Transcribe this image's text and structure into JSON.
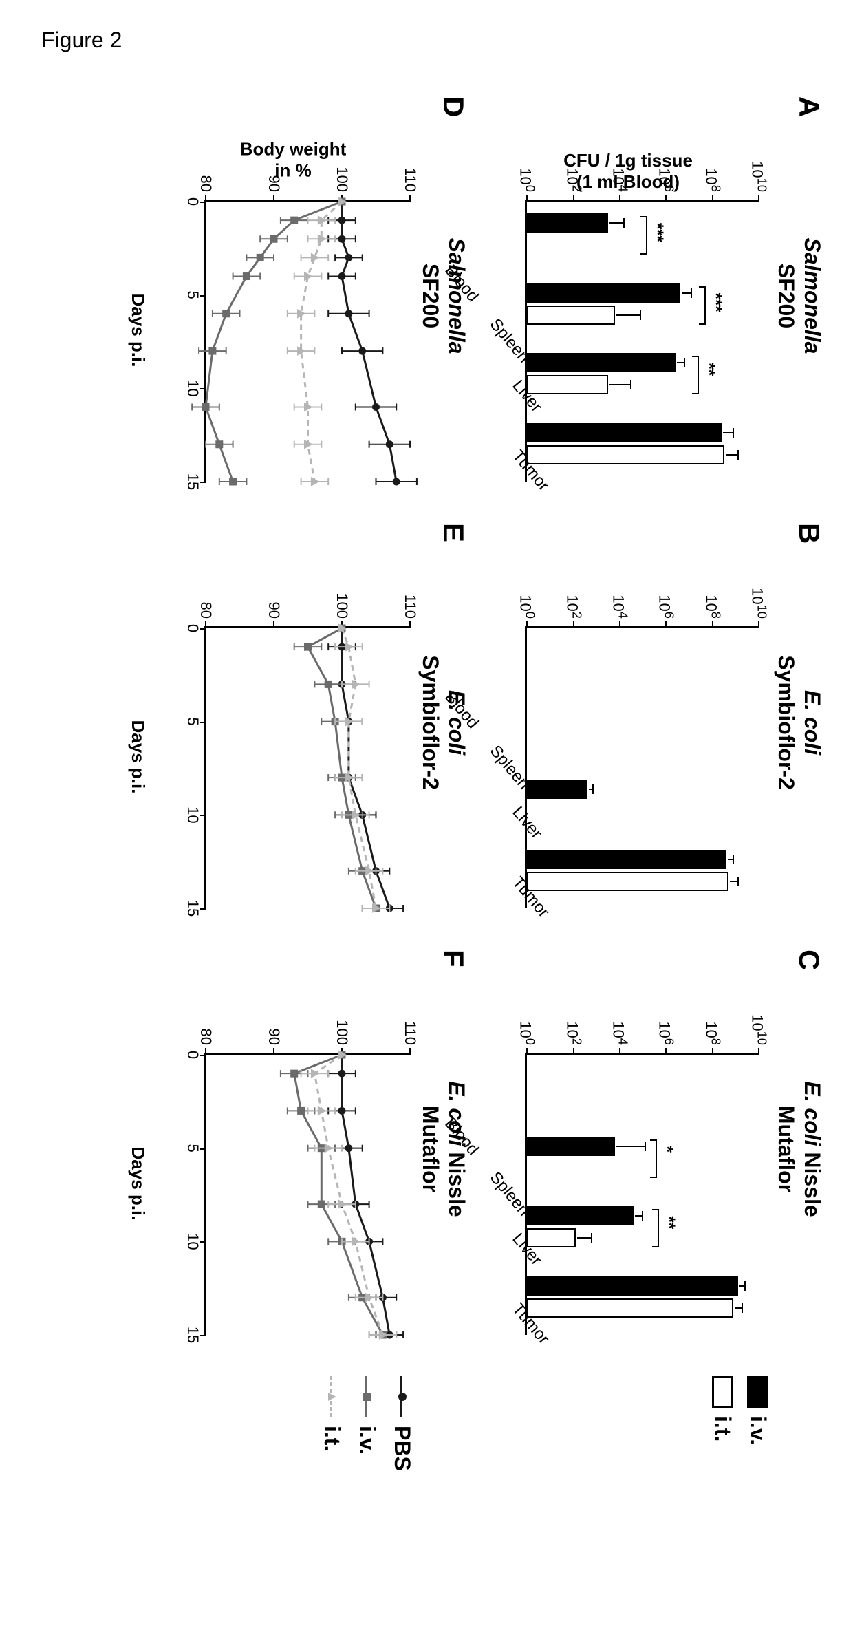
{
  "figure_caption": "Figure 2",
  "panels": {
    "A": {
      "letter": "A",
      "title_italic": "Salmonella",
      "title_plain": "SF200"
    },
    "B": {
      "letter": "B",
      "title_italic": "E. coli",
      "title_plain": "Symbioflor-2"
    },
    "C": {
      "letter": "C",
      "title_italic": "E. coli",
      "title_plain_pre": " Nissle",
      "title_plain": "Mutaflor"
    },
    "D": {
      "letter": "D",
      "title_italic": "Salmonella",
      "title_plain": "SF200"
    },
    "E": {
      "letter": "E",
      "title_italic": "E. coli",
      "title_plain": "Symbioflor-2"
    },
    "F": {
      "letter": "F",
      "title_italic": "E. coli",
      "title_plain_pre": " Nissle",
      "title_plain": "Mutaflor"
    }
  },
  "bar_yaxis": {
    "label": "CFU / 1g tissue\n(1 ml Blood)",
    "ticks": [
      "10^0",
      "10^2",
      "10^4",
      "10^6",
      "10^8",
      "10^10"
    ],
    "min_exp": 0,
    "max_exp": 10
  },
  "bar_categories": [
    "Blood",
    "Spleen",
    "Liver",
    "Tumor"
  ],
  "bar_legend": {
    "iv": "i.v.",
    "it": "i.t."
  },
  "bar_data": {
    "A": {
      "Blood": {
        "iv": {
          "val": 3.5,
          "err": 0.6
        },
        "it": null
      },
      "Spleen": {
        "iv": {
          "val": 6.6,
          "err": 0.4
        },
        "it": {
          "val": 3.8,
          "err": 1.0
        }
      },
      "Liver": {
        "iv": {
          "val": 6.4,
          "err": 0.3
        },
        "it": {
          "val": 3.5,
          "err": 0.9
        }
      },
      "Tumor": {
        "iv": {
          "val": 8.4,
          "err": 0.4
        },
        "it": {
          "val": 8.5,
          "err": 0.5
        }
      }
    },
    "B": {
      "Blood": {
        "iv": null,
        "it": null
      },
      "Spleen": {
        "iv": null,
        "it": null
      },
      "Liver": {
        "iv": {
          "val": 2.6,
          "err": 0.15
        },
        "it": null
      },
      "Tumor": {
        "iv": {
          "val": 8.6,
          "err": 0.2
        },
        "it": {
          "val": 8.7,
          "err": 0.3
        }
      }
    },
    "C": {
      "Blood": {
        "iv": null,
        "it": null
      },
      "Spleen": {
        "iv": {
          "val": 3.8,
          "err": 1.2
        },
        "it": null
      },
      "Liver": {
        "iv": {
          "val": 4.6,
          "err": 0.3
        },
        "it": {
          "val": 2.1,
          "err": 0.6
        }
      },
      "Tumor": {
        "iv": {
          "val": 9.1,
          "err": 0.2
        },
        "it": {
          "val": 8.9,
          "err": 0.3
        }
      }
    }
  },
  "bar_sig": {
    "A": [
      {
        "over": "Blood",
        "between": [
          "iv",
          "it"
        ],
        "label": "***",
        "y": 5.2
      },
      {
        "over": "Spleen",
        "between": [
          "iv",
          "it"
        ],
        "label": "***",
        "y": 7.7
      },
      {
        "over": "Liver",
        "between": [
          "iv",
          "it"
        ],
        "label": "**",
        "y": 7.4
      }
    ],
    "B": [],
    "C": [
      {
        "over": "Spleen",
        "between": [
          "iv",
          "it"
        ],
        "label": "*",
        "y": 5.6
      },
      {
        "over": "Liver",
        "between": [
          "iv",
          "it"
        ],
        "label": "**",
        "y": 5.7
      }
    ]
  },
  "line_yaxis": {
    "label": "Body weight\nin %",
    "min": 80,
    "max": 110,
    "step": 10
  },
  "line_xaxis": {
    "label": "Days p.i.",
    "min": 0,
    "max": 15,
    "step": 5
  },
  "line_legend": {
    "PBS": "PBS",
    "iv": "i.v.",
    "it": "i.t."
  },
  "line_colors": {
    "PBS": "#1a1a1a",
    "iv": "#6b6b6b",
    "it": "#b5b5b5"
  },
  "line_styles": {
    "PBS": "solid",
    "iv": "solid",
    "it": "dash"
  },
  "line_markers": {
    "PBS": "circle",
    "iv": "square",
    "it": "triangle"
  },
  "line_data": {
    "D": {
      "x": [
        0,
        1,
        2,
        3,
        4,
        6,
        8,
        11,
        13,
        15
      ],
      "PBS": {
        "y": [
          100,
          100,
          100,
          101,
          100,
          101,
          103,
          105,
          107,
          108
        ],
        "err": [
          0,
          2,
          2,
          2,
          2,
          3,
          3,
          3,
          3,
          3
        ]
      },
      "iv": {
        "y": [
          100,
          93,
          90,
          88,
          86,
          83,
          81,
          80,
          82,
          84
        ],
        "err": [
          0,
          2,
          2,
          2,
          2,
          2,
          2,
          2,
          2,
          2
        ]
      },
      "it": {
        "y": [
          100,
          97,
          97,
          96,
          95,
          94,
          94,
          95,
          95,
          96
        ],
        "err": [
          0,
          2,
          2,
          2,
          2,
          2,
          2,
          2,
          2,
          2
        ]
      }
    },
    "E": {
      "x": [
        0,
        1,
        3,
        5,
        8,
        10,
        13,
        15
      ],
      "PBS": {
        "y": [
          100,
          100,
          100,
          101,
          101,
          103,
          105,
          107
        ],
        "err": [
          0,
          2,
          2,
          2,
          2,
          2,
          2,
          2
        ]
      },
      "iv": {
        "y": [
          100,
          95,
          98,
          99,
          100,
          101,
          103,
          105
        ],
        "err": [
          0,
          2,
          2,
          2,
          2,
          2,
          2,
          2
        ]
      },
      "it": {
        "y": [
          100,
          101,
          102,
          101,
          101,
          102,
          104,
          105
        ],
        "err": [
          0,
          2,
          2,
          2,
          2,
          2,
          2,
          2
        ]
      }
    },
    "F": {
      "x": [
        0,
        1,
        3,
        5,
        8,
        10,
        13,
        15
      ],
      "PBS": {
        "y": [
          100,
          100,
          100,
          101,
          102,
          104,
          106,
          107
        ],
        "err": [
          0,
          2,
          2,
          2,
          2,
          2,
          2,
          2
        ]
      },
      "iv": {
        "y": [
          100,
          93,
          94,
          97,
          97,
          100,
          103,
          106
        ],
        "err": [
          0,
          2,
          2,
          2,
          2,
          2,
          2,
          2
        ]
      },
      "it": {
        "y": [
          100,
          96,
          97,
          98,
          100,
          102,
          104,
          106
        ],
        "err": [
          0,
          2,
          2,
          2,
          2,
          2,
          2,
          2
        ]
      }
    }
  }
}
